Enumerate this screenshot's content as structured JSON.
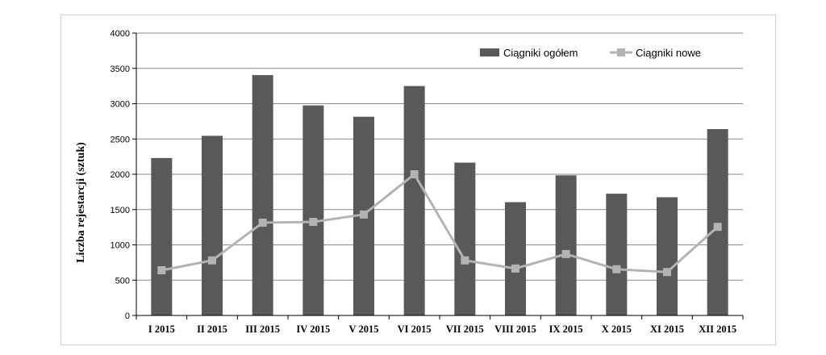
{
  "chart_data": {
    "type": "bar",
    "categories": [
      "I 2015",
      "II 2015",
      "III 2015",
      "IV 2015",
      "V 2015",
      "VI 2015",
      "VII 2015",
      "VIII 2015",
      "IX 2015",
      "X 2015",
      "XI 2015",
      "XII 2015"
    ],
    "series": [
      {
        "name": "Ciągniki ogółem",
        "type": "bar",
        "color": "#595959",
        "values": [
          2230,
          2545,
          3405,
          2975,
          2815,
          3250,
          2165,
          1605,
          1985,
          1725,
          1675,
          2640
        ]
      },
      {
        "name": "Ciągniki nowe",
        "type": "line",
        "color": "#b3b3b3",
        "values": [
          640,
          780,
          1315,
          1325,
          1430,
          2000,
          780,
          665,
          870,
          655,
          615,
          1255
        ]
      }
    ],
    "title": "",
    "xlabel": "",
    "ylabel": "Liczba rejestarcji (sztuk)",
    "ylim": [
      0,
      4000
    ],
    "yticks": [
      0,
      500,
      1000,
      1500,
      2000,
      2500,
      3000,
      3500,
      4000
    ],
    "grid": true,
    "legend": "top-right"
  }
}
